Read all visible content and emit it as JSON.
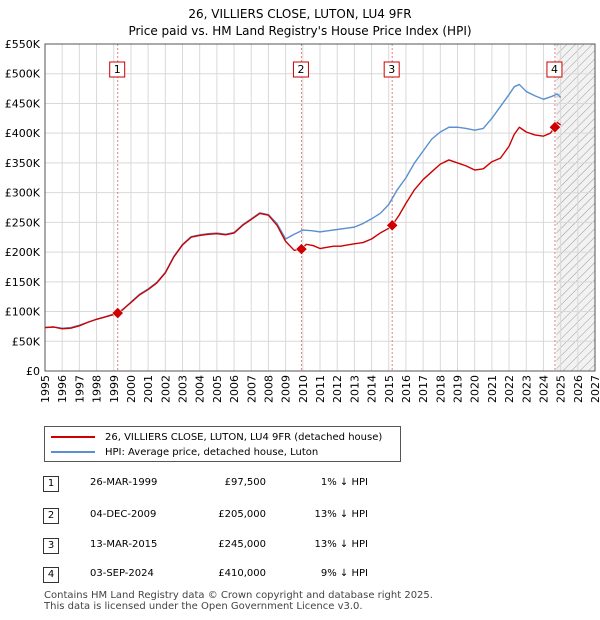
{
  "chart_data": {
    "type": "line",
    "title": "26, VILLIERS CLOSE, LUTON, LU4 9FR",
    "subtitle": "Price paid vs. HM Land Registry's House Price Index (HPI)",
    "xlabel": "",
    "ylabel": "",
    "xlim": [
      1995,
      2027
    ],
    "ylim": [
      0,
      550000
    ],
    "yticks": [
      0,
      50000,
      100000,
      150000,
      200000,
      250000,
      300000,
      350000,
      400000,
      450000,
      500000,
      550000
    ],
    "ytick_labels": [
      "£0",
      "£50K",
      "£100K",
      "£150K",
      "£200K",
      "£250K",
      "£300K",
      "£350K",
      "£400K",
      "£450K",
      "£500K",
      "£550K"
    ],
    "xticks": [
      1995,
      1996,
      1997,
      1998,
      1999,
      2000,
      2001,
      2002,
      2003,
      2004,
      2005,
      2006,
      2007,
      2008,
      2009,
      2010,
      2011,
      2012,
      2013,
      2014,
      2015,
      2016,
      2017,
      2018,
      2019,
      2020,
      2021,
      2022,
      2023,
      2024,
      2025,
      2026,
      2027
    ],
    "grid": true,
    "hatch_from": 2024.75,
    "series": [
      {
        "name": "26, VILLIERS CLOSE, LUTON, LU4 9FR (detached house)",
        "color": "#cc0000",
        "x": [
          1995.0,
          1995.5,
          1996.0,
          1996.5,
          1997.0,
          1997.5,
          1998.0,
          1998.5,
          1999.0,
          1999.23,
          1999.5,
          2000.0,
          2000.5,
          2001.0,
          2001.5,
          2002.0,
          2002.5,
          2003.0,
          2003.5,
          2004.0,
          2004.5,
          2005.0,
          2005.5,
          2006.0,
          2006.5,
          2007.0,
          2007.5,
          2008.0,
          2008.5,
          2009.0,
          2009.5,
          2009.92,
          2010.2,
          2010.6,
          2011.0,
          2011.4,
          2011.8,
          2012.2,
          2012.6,
          2013.0,
          2013.5,
          2014.0,
          2014.5,
          2015.0,
          2015.2,
          2015.6,
          2016.0,
          2016.5,
          2017.0,
          2017.5,
          2018.0,
          2018.5,
          2019.0,
          2019.5,
          2020.0,
          2020.5,
          2021.0,
          2021.5,
          2022.0,
          2022.3,
          2022.6,
          2023.0,
          2023.5,
          2024.0,
          2024.4,
          2024.67,
          2024.8,
          2025.0
        ],
        "y": [
          73000,
          74000,
          71000,
          72000,
          76000,
          82000,
          87000,
          91000,
          95000,
          97500,
          103000,
          115000,
          128000,
          137000,
          148000,
          165000,
          192000,
          212000,
          225000,
          228000,
          230000,
          231000,
          229000,
          232000,
          245000,
          255000,
          265000,
          262000,
          245000,
          218000,
          203000,
          205000,
          213000,
          211000,
          206000,
          208000,
          210000,
          210000,
          212000,
          214000,
          216000,
          222000,
          232000,
          240000,
          245000,
          262000,
          282000,
          305000,
          322000,
          335000,
          348000,
          355000,
          350000,
          345000,
          338000,
          340000,
          352000,
          358000,
          378000,
          398000,
          410000,
          402000,
          397000,
          395000,
          400000,
          410000,
          418000,
          414000
        ]
      },
      {
        "name": "HPI: Average price, detached house, Luton",
        "color": "#5b8fd1",
        "x": [
          1995.0,
          1995.5,
          1996.0,
          1996.5,
          1997.0,
          1997.5,
          1998.0,
          1998.5,
          1999.0,
          1999.5,
          2000.0,
          2000.5,
          2001.0,
          2001.5,
          2002.0,
          2002.5,
          2003.0,
          2003.5,
          2004.0,
          2004.5,
          2005.0,
          2005.5,
          2006.0,
          2006.5,
          2007.0,
          2007.5,
          2008.0,
          2008.5,
          2009.0,
          2009.5,
          2010.0,
          2010.5,
          2011.0,
          2011.5,
          2012.0,
          2012.5,
          2013.0,
          2013.5,
          2014.0,
          2014.5,
          2015.0,
          2015.5,
          2016.0,
          2016.5,
          2017.0,
          2017.5,
          2018.0,
          2018.5,
          2019.0,
          2019.5,
          2020.0,
          2020.5,
          2021.0,
          2021.5,
          2022.0,
          2022.3,
          2022.6,
          2023.0,
          2023.5,
          2024.0,
          2024.5,
          2024.8,
          2025.0
        ],
        "y": [
          73000,
          74000,
          72000,
          73000,
          77000,
          82000,
          87000,
          91000,
          96000,
          102000,
          116000,
          129000,
          138000,
          149000,
          166000,
          193000,
          213000,
          226000,
          229000,
          231000,
          232000,
          230000,
          233000,
          246000,
          256000,
          266000,
          263000,
          248000,
          222000,
          230000,
          237000,
          236000,
          234000,
          236000,
          238000,
          240000,
          242000,
          248000,
          256000,
          265000,
          280000,
          305000,
          325000,
          350000,
          370000,
          390000,
          402000,
          410000,
          410000,
          408000,
          405000,
          408000,
          425000,
          445000,
          465000,
          478000,
          482000,
          470000,
          463000,
          457000,
          462000,
          466000,
          460000
        ]
      }
    ],
    "sales": [
      {
        "label": "1",
        "x": 1999.23,
        "y": 97500
      },
      {
        "label": "2",
        "x": 2009.92,
        "y": 205000
      },
      {
        "label": "3",
        "x": 2015.2,
        "y": 245000
      },
      {
        "label": "4",
        "x": 2024.67,
        "y": 410000
      }
    ]
  },
  "legend": {
    "property": "26, VILLIERS CLOSE, LUTON, LU4 9FR (detached house)",
    "hpi": "HPI: Average price, detached house, Luton"
  },
  "transactions": [
    {
      "num": "1",
      "date": "26-MAR-1999",
      "price": "£97,500",
      "hpi": "1% ↓ HPI"
    },
    {
      "num": "2",
      "date": "04-DEC-2009",
      "price": "£205,000",
      "hpi": "13% ↓ HPI"
    },
    {
      "num": "3",
      "date": "13-MAR-2015",
      "price": "£245,000",
      "hpi": "13% ↓ HPI"
    },
    {
      "num": "4",
      "date": "03-SEP-2024",
      "price": "£410,000",
      "hpi": "9% ↓ HPI"
    }
  ],
  "footer": {
    "line1": "Contains HM Land Registry data © Crown copyright and database right 2025.",
    "line2": "This data is licensed under the Open Government Licence v3.0."
  }
}
